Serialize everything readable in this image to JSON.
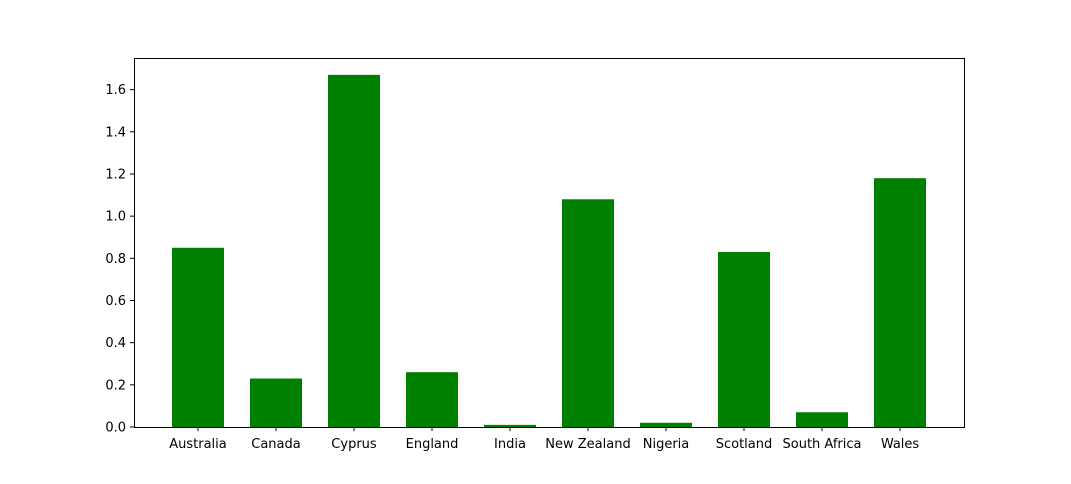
{
  "chart_data": {
    "type": "bar",
    "categories": [
      "Australia",
      "Canada",
      "Cyprus",
      "England",
      "India",
      "New Zealand",
      "Nigeria",
      "Scotland",
      "South Africa",
      "Wales"
    ],
    "values": [
      0.85,
      0.23,
      1.67,
      0.26,
      0.01,
      1.08,
      0.02,
      0.83,
      0.07,
      1.18
    ],
    "ylim": [
      0,
      1.75
    ],
    "yticks": [
      "0.0",
      "0.2",
      "0.4",
      "0.6",
      "0.8",
      "1.0",
      "1.2",
      "1.4",
      "1.6"
    ],
    "bar_color": "#008000",
    "grid": false,
    "title": "",
    "xlabel": "",
    "ylabel": ""
  }
}
